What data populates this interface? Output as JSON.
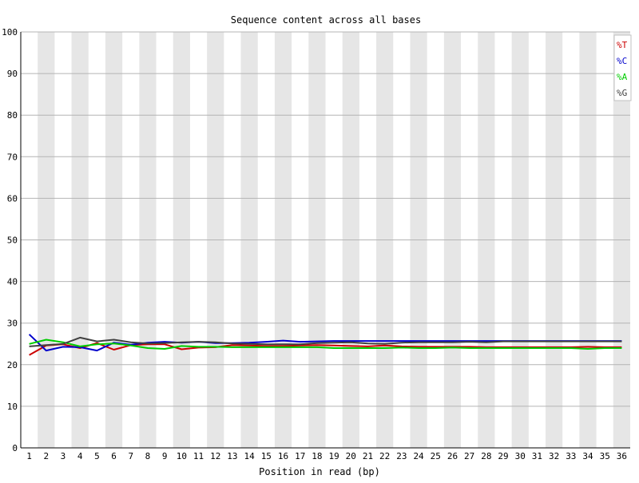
{
  "chart_data": {
    "type": "line",
    "title": "Sequence content across all bases",
    "xlabel": "Position in read (bp)",
    "ylabel": "",
    "x": [
      1,
      2,
      3,
      4,
      5,
      6,
      7,
      8,
      9,
      10,
      11,
      12,
      13,
      14,
      15,
      16,
      17,
      18,
      19,
      20,
      21,
      22,
      23,
      24,
      25,
      26,
      27,
      28,
      29,
      30,
      31,
      32,
      33,
      34,
      35,
      36
    ],
    "xlim": [
      1,
      36
    ],
    "ylim": [
      0,
      100
    ],
    "yticks": [
      0,
      10,
      20,
      30,
      40,
      50,
      60,
      70,
      80,
      90,
      100
    ],
    "grid": true,
    "legend_position": "top-right",
    "series": [
      {
        "name": "%T",
        "color": "#cc0000",
        "values": [
          22.3,
          24.6,
          24.9,
          24.0,
          25.2,
          23.6,
          24.7,
          24.9,
          24.9,
          23.7,
          24.1,
          24.2,
          24.7,
          24.6,
          24.5,
          24.5,
          24.6,
          24.7,
          24.6,
          24.5,
          24.4,
          24.6,
          24.4,
          24.3,
          24.3,
          24.3,
          24.3,
          24.2,
          24.2,
          24.2,
          24.2,
          24.2,
          24.2,
          24.3,
          24.2,
          24.2
        ]
      },
      {
        "name": "%C",
        "color": "#0000cc",
        "values": [
          27.3,
          23.4,
          24.3,
          24.2,
          23.4,
          25.3,
          24.8,
          25.3,
          25.5,
          25.3,
          25.5,
          25.2,
          25.2,
          25.3,
          25.5,
          25.8,
          25.5,
          25.6,
          25.7,
          25.7,
          25.7,
          25.7,
          25.7,
          25.7,
          25.7,
          25.7,
          25.7,
          25.7,
          25.7,
          25.7,
          25.7,
          25.7,
          25.7,
          25.7,
          25.7,
          25.7
        ]
      },
      {
        "name": "%A",
        "color": "#00cc00",
        "values": [
          25.0,
          26.0,
          25.4,
          24.4,
          24.9,
          25.1,
          24.6,
          24.0,
          23.8,
          24.5,
          24.3,
          24.3,
          24.2,
          24.2,
          24.2,
          24.2,
          24.2,
          24.2,
          24.0,
          24.0,
          24.0,
          24.0,
          24.1,
          24.0,
          24.0,
          24.1,
          24.0,
          24.0,
          24.0,
          24.0,
          24.0,
          24.0,
          24.0,
          23.8,
          24.0,
          24.0
        ]
      },
      {
        "name": "%G",
        "color": "#404040",
        "values": [
          24.4,
          24.7,
          25.0,
          26.5,
          25.6,
          26.0,
          25.4,
          25.1,
          25.2,
          25.4,
          25.5,
          25.4,
          25.1,
          25.0,
          24.9,
          24.9,
          24.9,
          25.2,
          25.3,
          25.4,
          25.1,
          25.0,
          25.3,
          25.4,
          25.4,
          25.4,
          25.5,
          25.4,
          25.6,
          25.6,
          25.6,
          25.6,
          25.6,
          25.6,
          25.6,
          25.6
        ]
      }
    ]
  }
}
